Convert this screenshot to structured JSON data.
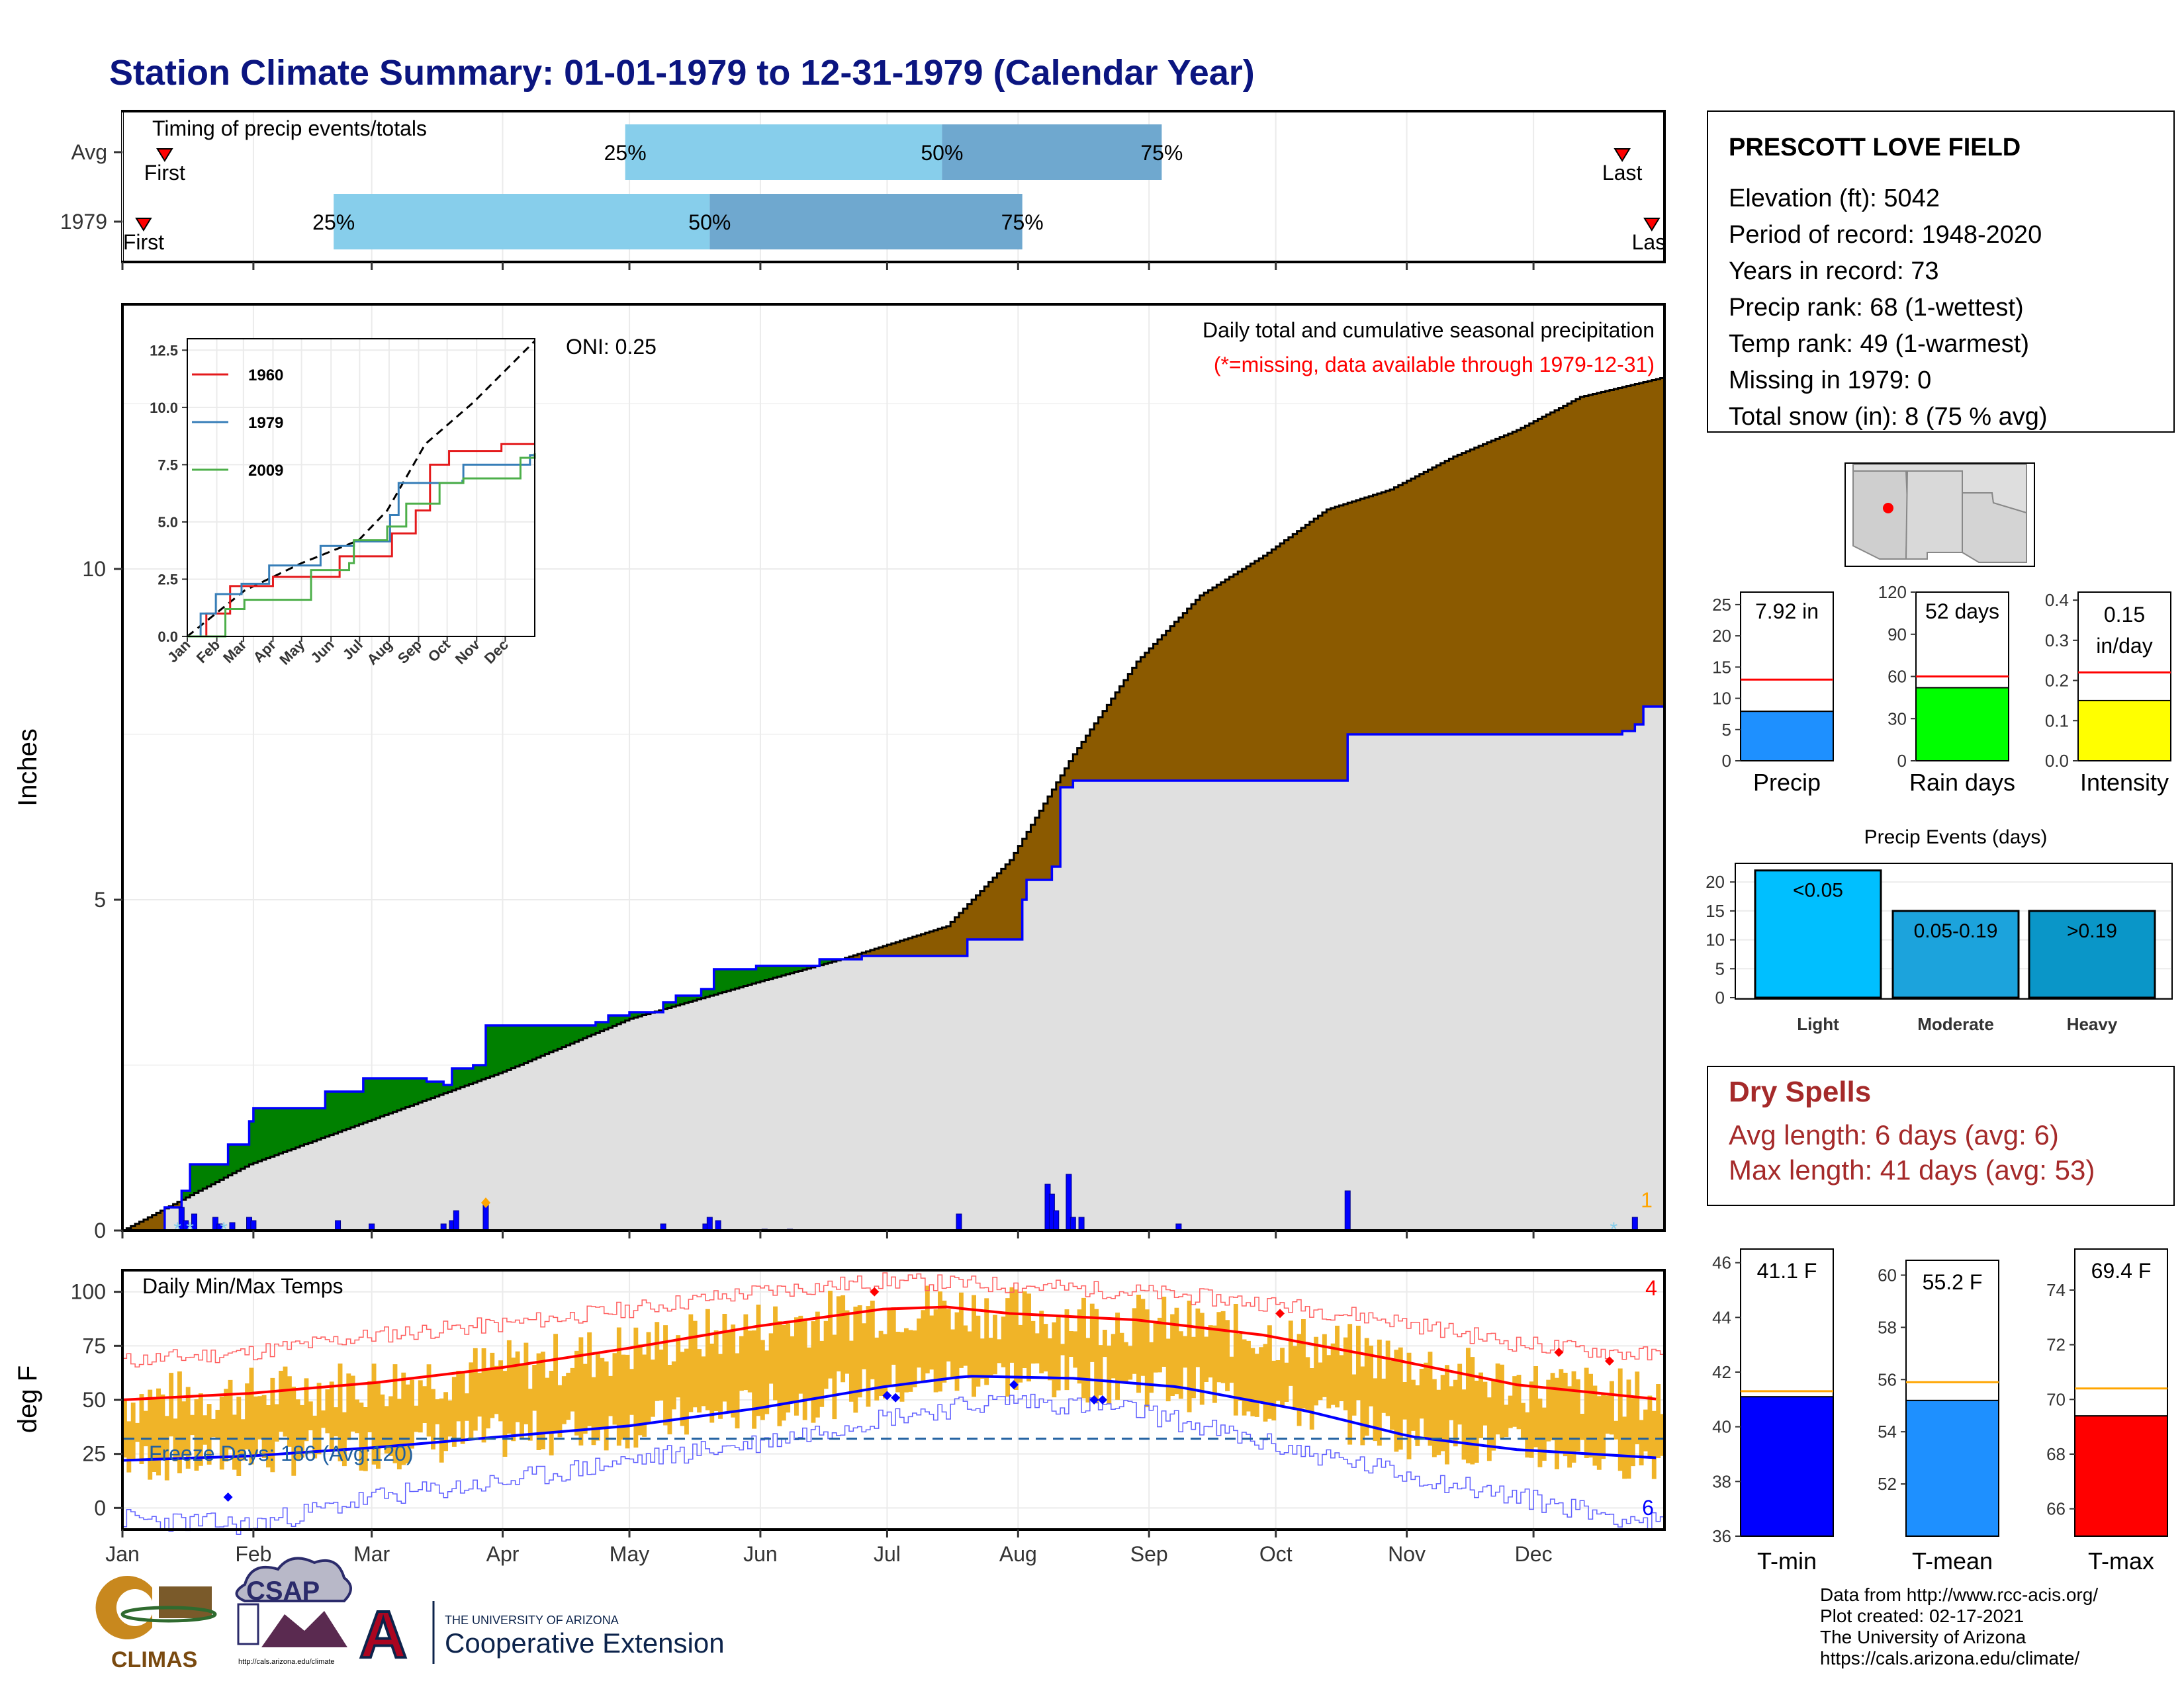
{
  "title": "Station Climate Summary: 01-01-1979 to 12-31-1979 (Calendar Year)",
  "colors": {
    "title": "#0b1580",
    "precip_light": "#87ceeb",
    "precip_dark": "#6fa8cf",
    "above_normal": "#8b5a00",
    "below_normal": "#008000",
    "normal_fill": "#e0e0e0",
    "blue_line": "#0000ff",
    "dry_spells": "#a52a2a",
    "tmax_line": "#ff0000",
    "tmin_line": "#0000ff",
    "temp_bars": "#f0b428"
  },
  "timing": {
    "title": "Timing of precip events/totals",
    "rows": [
      {
        "label": "Avg",
        "first_label": "First",
        "last_label": "Last",
        "first_day": 10,
        "last_day": 355,
        "p25_day": 119,
        "p50_day": 194,
        "p75_day": 246
      },
      {
        "label": "1979",
        "first_label": "First",
        "last_label": "Last",
        "first_day": 5,
        "last_day": 362,
        "p25_day": 50,
        "p50_day": 139,
        "p75_day": 213
      }
    ],
    "pct_labels": [
      "25%",
      "50%",
      "75%"
    ]
  },
  "precip": {
    "ylabel": "Inches",
    "legend_title": "Daily total and cumulative seasonal precipitation",
    "missing_note": "(*=missing, data available through 1979-12-31)",
    "oni": "ONI: 0.25",
    "snow_count": "1",
    "yticks": [
      "0",
      "5",
      "10"
    ],
    "ylim": [
      0,
      14
    ],
    "cumulative_1979": [
      [
        0,
        0
      ],
      [
        10,
        0.35
      ],
      [
        14,
        0.6
      ],
      [
        16,
        1.0
      ],
      [
        24,
        1.0
      ],
      [
        25,
        1.3
      ],
      [
        29,
        1.3
      ],
      [
        30,
        1.65
      ],
      [
        31,
        1.85
      ],
      [
        45,
        1.85
      ],
      [
        48,
        2.1
      ],
      [
        56,
        2.1
      ],
      [
        57,
        2.3
      ],
      [
        71,
        2.3
      ],
      [
        72,
        2.25
      ],
      [
        76,
        2.2
      ],
      [
        78,
        2.45
      ],
      [
        83,
        2.5
      ],
      [
        86,
        3.1
      ],
      [
        112,
        3.15
      ],
      [
        115,
        3.25
      ],
      [
        120,
        3.3
      ],
      [
        126,
        3.3
      ],
      [
        128,
        3.45
      ],
      [
        131,
        3.55
      ],
      [
        137,
        3.65
      ],
      [
        140,
        3.95
      ],
      [
        150,
        4.0
      ],
      [
        165,
        4.1
      ],
      [
        175,
        4.15
      ],
      [
        198,
        4.15
      ],
      [
        200,
        4.4
      ],
      [
        212,
        4.4
      ],
      [
        213,
        5.0
      ],
      [
        214,
        5.3
      ],
      [
        220,
        5.5
      ],
      [
        222,
        6.7
      ],
      [
        225,
        6.8
      ],
      [
        289,
        6.8
      ],
      [
        290,
        7.5
      ],
      [
        355,
        7.55
      ],
      [
        358,
        7.65
      ],
      [
        360,
        7.92
      ],
      [
        365,
        7.92
      ]
    ],
    "normal_cumulative": [
      [
        0,
        0
      ],
      [
        30,
        1.0
      ],
      [
        60,
        1.7
      ],
      [
        90,
        2.4
      ],
      [
        120,
        3.2
      ],
      [
        150,
        3.75
      ],
      [
        170,
        4.1
      ],
      [
        180,
        4.3
      ],
      [
        195,
        4.6
      ],
      [
        210,
        5.6
      ],
      [
        225,
        7.2
      ],
      [
        240,
        8.6
      ],
      [
        255,
        9.6
      ],
      [
        270,
        10.2
      ],
      [
        285,
        10.9
      ],
      [
        300,
        11.2
      ],
      [
        315,
        11.7
      ],
      [
        330,
        12.1
      ],
      [
        345,
        12.6
      ],
      [
        365,
        12.9
      ]
    ],
    "daily_bars": [
      [
        14,
        0.35
      ],
      [
        15,
        0.15
      ],
      [
        17,
        0.25
      ],
      [
        22,
        0.2
      ],
      [
        23,
        0.1
      ],
      [
        26,
        0.12
      ],
      [
        30,
        0.2
      ],
      [
        31,
        0.15
      ],
      [
        51,
        0.15
      ],
      [
        59,
        0.1
      ],
      [
        76,
        0.1
      ],
      [
        78,
        0.15
      ],
      [
        79,
        0.3
      ],
      [
        86,
        0.4
      ],
      [
        128,
        0.1
      ],
      [
        138,
        0.1
      ],
      [
        139,
        0.2
      ],
      [
        141,
        0.15
      ],
      [
        152,
        0.02
      ],
      [
        158,
        0.02
      ],
      [
        198,
        0.25
      ],
      [
        219,
        0.7
      ],
      [
        220,
        0.55
      ],
      [
        221,
        0.3
      ],
      [
        224,
        0.85
      ],
      [
        225,
        0.2
      ],
      [
        227,
        0.2
      ],
      [
        250,
        0.1
      ],
      [
        290,
        0.6
      ],
      [
        358,
        0.2
      ]
    ],
    "snow_days": [
      13,
      16,
      24,
      353
    ],
    "snow_marker_day": 86
  },
  "inset": {
    "legend": [
      {
        "name": "1960",
        "color": "#e41a1c"
      },
      {
        "name": "1979",
        "color": "#377eb8"
      },
      {
        "name": "2009",
        "color": "#4daf4a"
      }
    ],
    "yticks": [
      "0.0",
      "2.5",
      "5.0",
      "7.5",
      "10.0",
      "12.5"
    ],
    "months": [
      "Jan",
      "Feb",
      "Mar",
      "Apr",
      "May",
      "Jun",
      "Jul",
      "Aug",
      "Sep",
      "Oct",
      "Nov",
      "Dec"
    ],
    "ylim": [
      0,
      13
    ],
    "series_1960": [
      [
        0,
        0
      ],
      [
        20,
        1.0
      ],
      [
        45,
        2.2
      ],
      [
        90,
        2.6
      ],
      [
        150,
        2.6
      ],
      [
        160,
        3.5
      ],
      [
        200,
        3.5
      ],
      [
        215,
        4.5
      ],
      [
        240,
        5.5
      ],
      [
        255,
        7.5
      ],
      [
        275,
        8.1
      ],
      [
        310,
        8.1
      ],
      [
        330,
        8.4
      ],
      [
        365,
        8.4
      ]
    ],
    "series_1979": [
      [
        0,
        0
      ],
      [
        14,
        1.0
      ],
      [
        30,
        1.85
      ],
      [
        57,
        2.3
      ],
      [
        86,
        3.1
      ],
      [
        140,
        3.95
      ],
      [
        175,
        4.15
      ],
      [
        213,
        5.3
      ],
      [
        222,
        6.7
      ],
      [
        289,
        6.8
      ],
      [
        290,
        7.5
      ],
      [
        360,
        7.92
      ],
      [
        365,
        7.92
      ]
    ],
    "series_2009": [
      [
        0,
        0
      ],
      [
        40,
        1.2
      ],
      [
        60,
        1.6
      ],
      [
        110,
        1.6
      ],
      [
        130,
        2.9
      ],
      [
        170,
        3.2
      ],
      [
        175,
        4.2
      ],
      [
        210,
        4.8
      ],
      [
        230,
        5.8
      ],
      [
        260,
        5.8
      ],
      [
        265,
        6.7
      ],
      [
        290,
        6.9
      ],
      [
        345,
        6.9
      ],
      [
        350,
        7.8
      ],
      [
        365,
        8.0
      ]
    ],
    "mean_series": [
      [
        0,
        0
      ],
      [
        60,
        2.0
      ],
      [
        120,
        3.2
      ],
      [
        180,
        4.2
      ],
      [
        210,
        5.5
      ],
      [
        250,
        8.4
      ],
      [
        300,
        10.2
      ],
      [
        365,
        12.9
      ]
    ]
  },
  "temps": {
    "title": "Daily Min/Max Temps",
    "ylabel": "deg F",
    "yticks": [
      "0",
      "25",
      "50",
      "75",
      "100"
    ],
    "ylim": [
      -10,
      110
    ],
    "freeze_label": "Freeze Days: 186 (Avg:120)",
    "freeze_line": 32,
    "record_high_count": "4",
    "record_low_count": "6",
    "tmax_normal": [
      [
        0,
        50
      ],
      [
        30,
        53
      ],
      [
        60,
        58
      ],
      [
        90,
        65
      ],
      [
        120,
        74
      ],
      [
        150,
        84
      ],
      [
        180,
        92
      ],
      [
        195,
        93
      ],
      [
        210,
        90
      ],
      [
        240,
        87
      ],
      [
        270,
        80
      ],
      [
        300,
        69
      ],
      [
        330,
        57
      ],
      [
        365,
        50
      ]
    ],
    "tmin_normal": [
      [
        0,
        22
      ],
      [
        30,
        24
      ],
      [
        60,
        28
      ],
      [
        90,
        33
      ],
      [
        120,
        38
      ],
      [
        150,
        46
      ],
      [
        180,
        56
      ],
      [
        200,
        61
      ],
      [
        225,
        60
      ],
      [
        250,
        56
      ],
      [
        280,
        45
      ],
      [
        305,
        33
      ],
      [
        330,
        27
      ],
      [
        365,
        23
      ]
    ],
    "record_max": [
      [
        0,
        68
      ],
      [
        30,
        72
      ],
      [
        60,
        80
      ],
      [
        90,
        85
      ],
      [
        120,
        92
      ],
      [
        150,
        100
      ],
      [
        180,
        105
      ],
      [
        210,
        103
      ],
      [
        240,
        100
      ],
      [
        270,
        95
      ],
      [
        300,
        87
      ],
      [
        330,
        76
      ],
      [
        365,
        70
      ]
    ],
    "record_min": [
      [
        0,
        -5
      ],
      [
        30,
        -8
      ],
      [
        60,
        5
      ],
      [
        90,
        12
      ],
      [
        120,
        22
      ],
      [
        150,
        30
      ],
      [
        180,
        42
      ],
      [
        210,
        50
      ],
      [
        240,
        45
      ],
      [
        270,
        30
      ],
      [
        300,
        17
      ],
      [
        330,
        5
      ],
      [
        365,
        -8
      ]
    ],
    "record_high_days": [
      178,
      274,
      340,
      352
    ],
    "record_high_values": [
      100,
      90,
      72,
      68
    ],
    "record_low_days": [
      25,
      181,
      183,
      211,
      230,
      232
    ],
    "record_low_values": [
      5,
      52,
      51,
      57,
      50,
      50
    ]
  },
  "months": [
    "Jan",
    "Feb",
    "Mar",
    "Apr",
    "May",
    "Jun",
    "Jul",
    "Aug",
    "Sep",
    "Oct",
    "Nov",
    "Dec"
  ],
  "station": {
    "name": "PRESCOTT LOVE FIELD",
    "lines": [
      "Elevation (ft): 5042",
      "Period of record: 1948-2020",
      "Years in record: 73",
      "Precip rank: 68 (1-wettest)",
      "Temp rank: 49 (1-warmest)",
      "Missing in 1979: 0",
      "Total snow (in): 8 (75 % avg)"
    ]
  },
  "mini_bars": [
    {
      "label": "Precip",
      "value_text": "7.92 in",
      "value": 7.92,
      "avg": 13.0,
      "ymax": 27,
      "yticks": [
        "0",
        "5",
        "10",
        "15",
        "20",
        "25"
      ],
      "tickvals": [
        0,
        5,
        10,
        15,
        20,
        25
      ],
      "color": "#1e90ff"
    },
    {
      "label": "Rain days",
      "value_text": "52 days",
      "value": 52,
      "avg": 60,
      "ymax": 120,
      "yticks": [
        "0",
        "30",
        "60",
        "90",
        "120"
      ],
      "tickvals": [
        0,
        30,
        60,
        90,
        120
      ],
      "color": "#00ff00"
    },
    {
      "label": "Intensity",
      "value_text": "0.15 in/day",
      "value": 0.15,
      "avg": 0.22,
      "ymax": 0.42,
      "yticks": [
        "0.0",
        "0.1",
        "0.2",
        "0.3",
        "0.4"
      ],
      "tickvals": [
        0,
        0.1,
        0.2,
        0.3,
        0.4
      ],
      "color": "#ffff00"
    }
  ],
  "precip_events": {
    "title": "Precip Events (days)",
    "yticks": [
      "0",
      "5",
      "10",
      "15",
      "20"
    ],
    "ymax": 23,
    "bars": [
      {
        "label": "Light",
        "text": "<0.05",
        "value": 22,
        "color": "#00bfff"
      },
      {
        "label": "Moderate",
        "text": "0.05-0.19",
        "value": 15,
        "color": "#1ca3dc"
      },
      {
        "label": "Heavy",
        "text": ">0.19",
        "value": 15,
        "color": "#0a96c8"
      }
    ]
  },
  "dry_spells": {
    "title": "Dry Spells",
    "avg_length": "Avg length: 6 days (avg: 6)",
    "max_length": "Max length: 41 days (avg: 53)"
  },
  "temp_bars": [
    {
      "label": "T-min",
      "value_text": "41.1 F",
      "value": 41.1,
      "avg": 41.3,
      "ymin": 36,
      "ymax": 46.5,
      "yticks": [
        "36",
        "38",
        "40",
        "42",
        "44",
        "46"
      ],
      "tickvals": [
        36,
        38,
        40,
        42,
        44,
        46
      ],
      "color": "#0000ff"
    },
    {
      "label": "T-mean",
      "value_text": "55.2 F",
      "value": 55.2,
      "avg": 55.9,
      "ymin": 50,
      "ymax": 61,
      "yticks": [
        "52",
        "54",
        "56",
        "58",
        "60"
      ],
      "tickvals": [
        52,
        54,
        56,
        58,
        60
      ],
      "color": "#1e90ff"
    },
    {
      "label": "T-max",
      "value_text": "69.4 F",
      "value": 69.4,
      "avg": 70.4,
      "ymin": 65,
      "ymax": 75.5,
      "yticks": [
        "66",
        "68",
        "70",
        "72",
        "74"
      ],
      "tickvals": [
        66,
        68,
        70,
        72,
        74
      ],
      "color": "#ff0000"
    }
  ],
  "footer": {
    "lines": [
      "Data from http://www.rcc-acis.org/",
      "Plot created: 02-17-2021",
      "The University of Arizona",
      "https://cals.arizona.edu/climate/"
    ],
    "climas": "CLIMAS",
    "csap": "CSAP",
    "csap_url": "http://cals.arizona.edu/climate",
    "ua_small": "THE UNIVERSITY OF ARIZONA",
    "ua_big": "Cooperative Extension"
  }
}
